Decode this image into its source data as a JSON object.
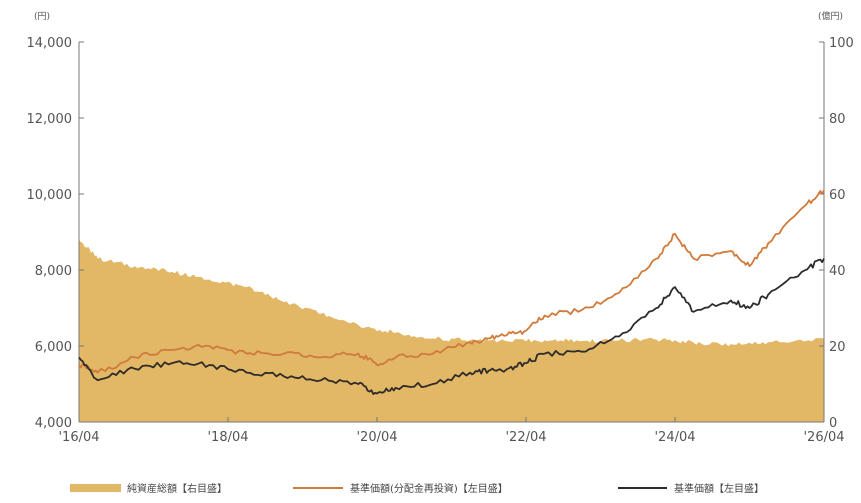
{
  "chart_data": {
    "type": "line",
    "left_axis": {
      "unit": "(円)",
      "ticks": [
        "14,000",
        "12,000",
        "10,000",
        "8,000",
        "6,000",
        "4,000"
      ],
      "tick_values": [
        14000,
        12000,
        10000,
        8000,
        6000,
        4000
      ],
      "ylim": [
        4000,
        14000
      ]
    },
    "right_axis": {
      "unit": "(億円)",
      "ticks": [
        "100",
        "80",
        "60",
        "40",
        "20",
        "0"
      ],
      "tick_values": [
        100,
        80,
        60,
        40,
        20,
        0
      ],
      "ylim": [
        0,
        100
      ]
    },
    "x_ticks": [
      "'16/04",
      "'18/04",
      "'20/04",
      "'22/04",
      "'24/04",
      "'26/04"
    ],
    "x_tick_years": [
      2016.25,
      2018.25,
      2020.25,
      2022.25,
      2024.25,
      2026.25
    ],
    "xlim": [
      2016.25,
      2026.25
    ],
    "grid": false,
    "legend_position": "bottom",
    "series": [
      {
        "name": "純資産総額【右目盛】",
        "kind": "area",
        "axis": "right",
        "color": "#e2b765",
        "x": [
          2016.25,
          2016.5,
          2017.0,
          2017.5,
          2018.0,
          2018.5,
          2019.0,
          2019.5,
          2020.0,
          2020.5,
          2021.0,
          2021.5,
          2022.0,
          2022.5,
          2023.0,
          2023.5,
          2024.0,
          2024.5,
          2025.0,
          2025.5,
          2026.25
        ],
        "values": [
          48,
          43,
          41,
          39.5,
          37.5,
          35.5,
          31.5,
          28.5,
          25.5,
          23.5,
          22,
          21.5,
          21.2,
          21.5,
          21.3,
          21.5,
          21.7,
          20.9,
          20.5,
          21,
          22
        ]
      },
      {
        "name": "基準価額(分配金再投資)【左目盛】",
        "kind": "line",
        "axis": "left",
        "color": "#d07a3b",
        "x": [
          2016.25,
          2016.5,
          2017.0,
          2017.5,
          2018.0,
          2018.5,
          2019.0,
          2019.5,
          2020.0,
          2020.25,
          2020.5,
          2021.0,
          2021.5,
          2021.75,
          2022.0,
          2022.25,
          2022.5,
          2023.0,
          2023.5,
          2024.0,
          2024.25,
          2024.5,
          2025.0,
          2025.25,
          2025.5,
          2026.0,
          2026.25
        ],
        "values": [
          5500,
          5300,
          5700,
          5900,
          6000,
          5800,
          5800,
          5700,
          5800,
          5500,
          5700,
          5800,
          6100,
          6200,
          6300,
          6400,
          6800,
          6950,
          7400,
          8300,
          8950,
          8300,
          8500,
          8100,
          8700,
          9700,
          10100
        ]
      },
      {
        "name": "基準価額【左目盛】",
        "kind": "line",
        "axis": "left",
        "color": "#2e2c2a",
        "x": [
          2016.25,
          2016.5,
          2017.0,
          2017.5,
          2018.0,
          2018.5,
          2019.0,
          2019.5,
          2020.0,
          2020.25,
          2020.5,
          2021.0,
          2021.5,
          2021.75,
          2022.0,
          2022.25,
          2022.5,
          2023.0,
          2023.5,
          2024.0,
          2024.25,
          2024.5,
          2025.0,
          2025.25,
          2025.5,
          2026.0,
          2026.25
        ],
        "values": [
          5700,
          5100,
          5400,
          5550,
          5500,
          5300,
          5200,
          5100,
          5000,
          4750,
          4900,
          5000,
          5300,
          5350,
          5400,
          5550,
          5800,
          5850,
          6250,
          7000,
          7550,
          6900,
          7200,
          7000,
          7350,
          8000,
          8300
        ]
      }
    ]
  }
}
